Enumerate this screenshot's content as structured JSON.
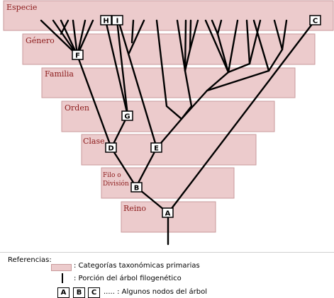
{
  "bands": [
    {
      "id": "especie",
      "label": "Especie"
    },
    {
      "id": "genero",
      "label": "Género"
    },
    {
      "id": "familia",
      "label": "Familia"
    },
    {
      "id": "orden",
      "label": "Orden"
    },
    {
      "id": "clase",
      "label": "Clase"
    },
    {
      "id": "filo",
      "label_line1": "Filo o",
      "label_line2": "División"
    },
    {
      "id": "reino",
      "label": "Reino"
    }
  ],
  "nodes": {
    "A": "A",
    "B": "B",
    "C": "C",
    "D": "D",
    "E": "E",
    "F": "F",
    "G": "G",
    "H": "H",
    "I": "I"
  },
  "legend": {
    "title": "Referencias:",
    "primary_categories": ": Categorías taxonómicas primarias",
    "tree_portion": ": Porción del árbol filogenético",
    "node_examples": [
      "A",
      "B",
      "C"
    ],
    "some_nodes": "..... : Algunos nodos del árbol"
  },
  "colors": {
    "band_fill": "#eccbcc",
    "band_stroke": "#c99a9b",
    "label_text": "#8b1a1a",
    "lines": "#000000"
  }
}
